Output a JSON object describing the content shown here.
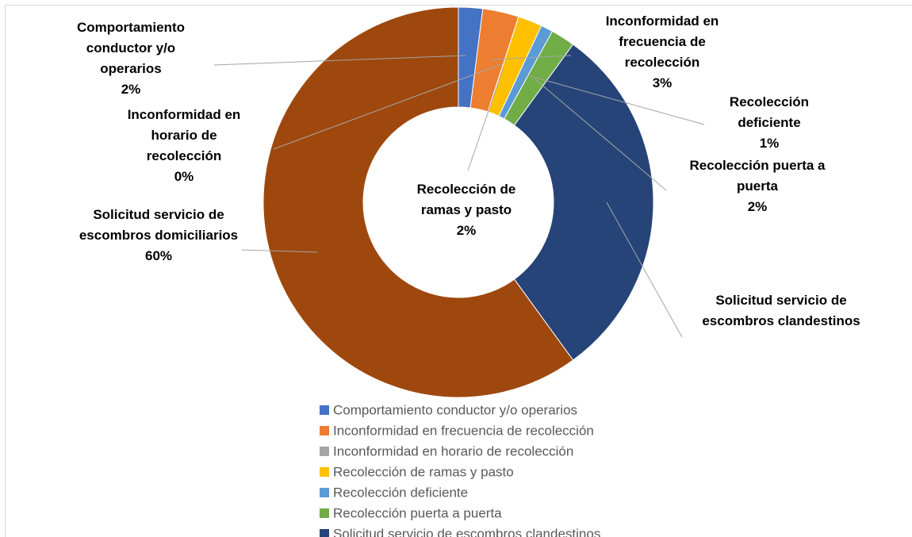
{
  "chart_data": {
    "type": "donut",
    "categories": [
      "Comportamiento conductor y/o operarios",
      "Inconformidad en frecuencia de recolección",
      "Inconformidad en horario de recolección",
      "Recolección de ramas y pasto",
      "Recolección deficiente",
      "Recolección puerta a puerta",
      "Solicitud servicio de escombros clandestinos",
      "Solicitud servicio de escombros domiciliarios"
    ],
    "values": [
      2,
      3,
      0,
      2,
      1,
      2,
      30,
      60
    ],
    "value_labels": [
      "2%",
      "3%",
      "0%",
      "2%",
      "1%",
      "2%",
      null,
      "60%"
    ],
    "colors": [
      "#4472c4",
      "#ed7d31",
      "#a5a5a5",
      "#ffc000",
      "#5b9bd5",
      "#70ad47",
      "#264478",
      "#9e480e"
    ]
  }
}
